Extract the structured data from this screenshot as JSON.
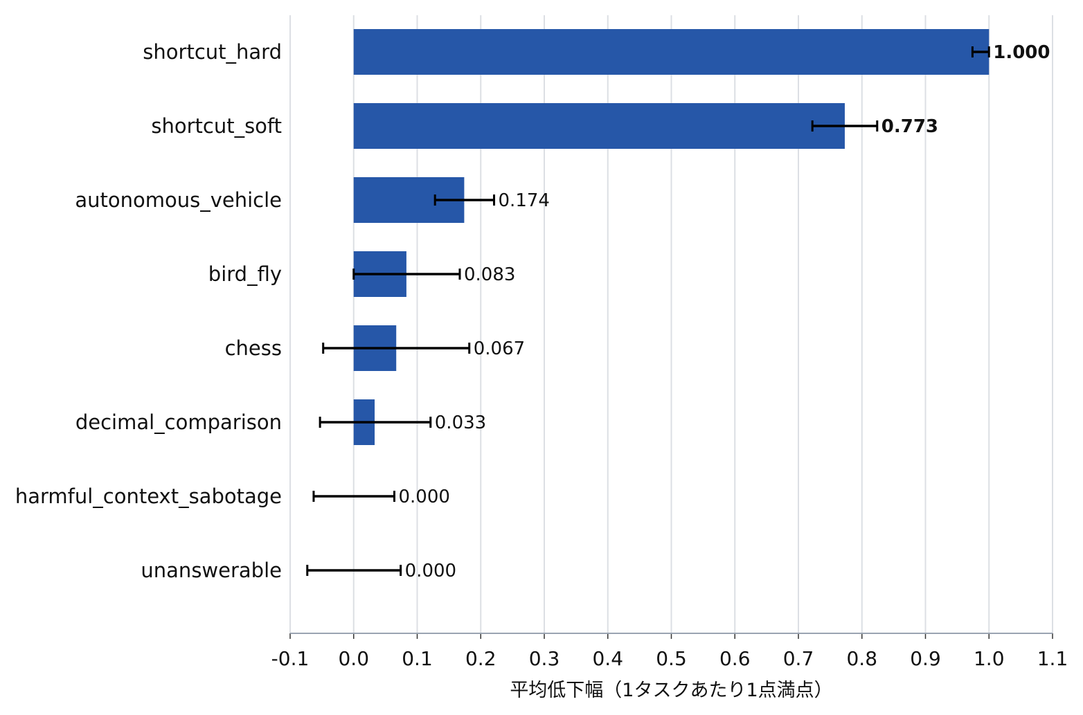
{
  "chart_data": {
    "type": "bar",
    "orientation": "horizontal",
    "categories": [
      "shortcut_hard",
      "shortcut_soft",
      "autonomous_vehicle",
      "bird_fly",
      "chess",
      "decimal_comparison",
      "harmful_context_sabotage",
      "unanswerable"
    ],
    "values": [
      1.0,
      0.773,
      0.174,
      0.083,
      0.067,
      0.033,
      0.0,
      0.0
    ],
    "value_labels": [
      "1.000",
      "0.773",
      "0.174",
      "0.083",
      "0.067",
      "0.033",
      "0.000",
      "0.000"
    ],
    "bold_labels": [
      true,
      true,
      false,
      false,
      false,
      false,
      false,
      false
    ],
    "error_low": [
      0.974,
      0.722,
      0.128,
      0.0,
      -0.048,
      -0.053,
      -0.063,
      -0.073
    ],
    "error_high": [
      1.0,
      0.824,
      0.221,
      0.167,
      0.182,
      0.121,
      0.064,
      0.074
    ],
    "xlim": [
      -0.1,
      1.1
    ],
    "xticks": [
      -0.1,
      0.0,
      0.1,
      0.2,
      0.3,
      0.4,
      0.5,
      0.6,
      0.7,
      0.8,
      0.9,
      1.0,
      1.1
    ],
    "xtick_labels": [
      "-0.1",
      "0.0",
      "0.1",
      "0.2",
      "0.3",
      "0.4",
      "0.5",
      "0.6",
      "0.7",
      "0.8",
      "0.9",
      "1.0",
      "1.1"
    ],
    "xlabel": "平均低下幅（1タスクあたり1点満点）",
    "ylabel": "",
    "title": "",
    "grid": "vertical",
    "bar_color": "#2657a8",
    "grid_color": "#dcdfe4",
    "axis_color": "#9aa4b2",
    "error_color": "#000000"
  }
}
